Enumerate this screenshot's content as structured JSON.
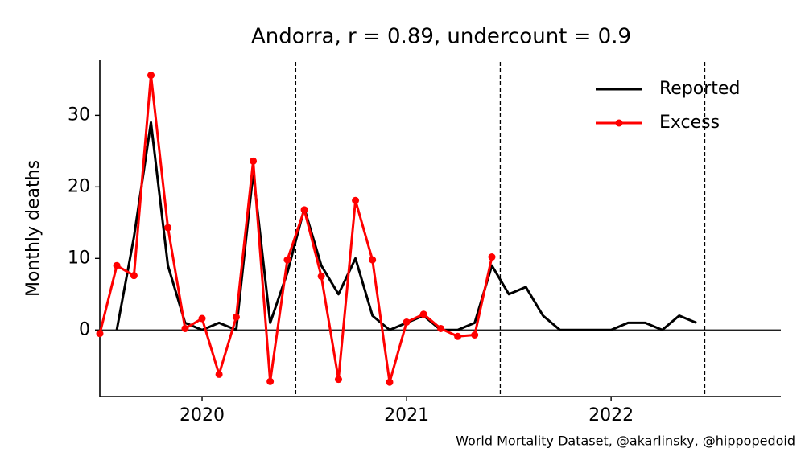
{
  "chart_data": {
    "type": "line",
    "title": "Andorra, r = 0.89, undercount = 0.9",
    "y_label": "Monthly deaths",
    "source": "World Mortality Dataset, @akarlinsky, @hippopedoid",
    "x": [
      2020.0,
      2020.083,
      2020.167,
      2020.25,
      2020.333,
      2020.417,
      2020.5,
      2020.583,
      2020.667,
      2020.75,
      2020.833,
      2020.917,
      2021.0,
      2021.083,
      2021.167,
      2021.25,
      2021.333,
      2021.417,
      2021.5,
      2021.583,
      2021.667,
      2021.75,
      2021.833,
      2021.917,
      2022.0,
      2022.083,
      2022.167,
      2022.25,
      2022.333,
      2022.417,
      2022.5,
      2022.583,
      2022.667,
      2022.75,
      2022.833,
      2022.917
    ],
    "series": [
      {
        "name": "Reported",
        "color": "#000000",
        "marker": false,
        "values": [
          null,
          0,
          13,
          29,
          9,
          1,
          0,
          1,
          0,
          22,
          1,
          8,
          17,
          9,
          5,
          10,
          2,
          0,
          1,
          2,
          0,
          0,
          1,
          9,
          5,
          6,
          2,
          0,
          0,
          0,
          0,
          1,
          1,
          0,
          2,
          1
        ]
      },
      {
        "name": "Excess",
        "color": "#ff0000",
        "marker": true,
        "values": [
          -0.5,
          9,
          7.6,
          35.6,
          14.3,
          0.2,
          1.6,
          -6.2,
          1.8,
          23.6,
          -7.2,
          9.8,
          16.8,
          7.5,
          -6.9,
          18.1,
          9.8,
          -7.3,
          1.1,
          2.2,
          0.2,
          -0.9,
          -0.7,
          10.2,
          null,
          null,
          null,
          null,
          null,
          null,
          null,
          null,
          null,
          null,
          null,
          null
        ]
      }
    ],
    "xlim": [
      2020.0,
      2023.33
    ],
    "ylim": [
      -9.3,
      37.8
    ],
    "xticks": [
      {
        "value": 2020.5,
        "label": "2020"
      },
      {
        "value": 2021.5,
        "label": "2021"
      },
      {
        "value": 2022.5,
        "label": "2022"
      }
    ],
    "yticks": [
      0,
      10,
      20,
      30
    ],
    "vlines": [
      2020.958,
      2021.958,
      2022.958
    ],
    "hline": 0,
    "legend": "upper right"
  }
}
